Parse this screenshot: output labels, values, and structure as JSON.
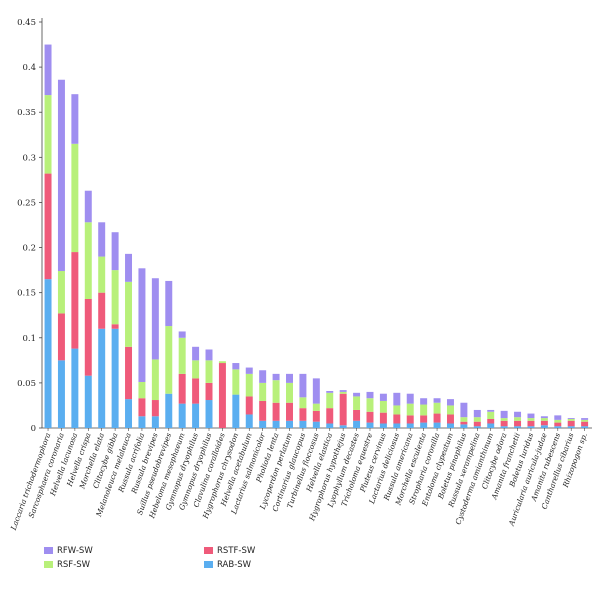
{
  "chart_data": {
    "type": "bar",
    "stacked": true,
    "title": "",
    "xlabel": "",
    "ylabel": "",
    "ylim": [
      0,
      0.45
    ],
    "yticks": [
      "0",
      "0.05",
      "0.1",
      "0.15",
      "0.2",
      "0.25",
      "0.3",
      "0.35",
      "0.4",
      "0.45"
    ],
    "grid": false,
    "legend_position": "bottom-left",
    "categories": [
      "Laccaria trichodermophora",
      "Sarcosphaera coronaria",
      "Helvella lacunosa",
      "Helvella crispa",
      "Morchella elata",
      "Clitocybe gibba",
      "Melanoleuca melaleuca",
      "Russula acrifolia",
      "Russula brevipes",
      "Suillus pseudobrevipes",
      "Hebeloma mesophaeum",
      "Gymnopus dryophilus",
      "Gymnopus dryophilus",
      "Clavulina coralloides",
      "Hygrophorus chrysodon",
      "Helvella acetabulum",
      "Lactarius salmonicolor",
      "Pholiota lenta",
      "Lycoperdon perlatum",
      "Cortinarius glaucopus",
      "Turbinellus floccosus",
      "Helvella elastica",
      "Hygrophorus hypothejus",
      "Lyophyllum decastes",
      "Tricholoma equestre",
      "Pluteus cervinus",
      "Lactarius deliciosus",
      "Russula americana",
      "Morchella esculenta",
      "Stropharia coronilla",
      "Entoloma clypeatum",
      "Boletus pinophilus",
      "Russula xerampelina",
      "Cystoderma amianthinum",
      "Clitocybe odora",
      "Amanita franchetii",
      "Boletus luridus",
      "Auricularia auricula-judae",
      "Amanita rubescens",
      "Cantharellus cibarius",
      "Rhizopogon sp."
    ],
    "series": [
      {
        "name": "RAB-SW",
        "color": "#5aaef0",
        "values": [
          0.165,
          0.075,
          0.088,
          0.058,
          0.11,
          0.11,
          0.032,
          0.013,
          0.013,
          0.038,
          0.027,
          0.027,
          0.031,
          0.0,
          0.037,
          0.015,
          0.008,
          0.008,
          0.008,
          0.008,
          0.007,
          0.005,
          0.003,
          0.008,
          0.006,
          0.005,
          0.005,
          0.005,
          0.006,
          0.006,
          0.005,
          0.004,
          0.002,
          0.005,
          0.002,
          0.002,
          0.002,
          0.003,
          0.002,
          0.002,
          0.002
        ]
      },
      {
        "name": "RSTF-SW",
        "color": "#ef5a7a",
        "values": [
          0.117,
          0.052,
          0.107,
          0.085,
          0.04,
          0.005,
          0.058,
          0.02,
          0.018,
          0.0,
          0.033,
          0.028,
          0.019,
          0.072,
          0.0,
          0.02,
          0.022,
          0.02,
          0.02,
          0.014,
          0.012,
          0.017,
          0.035,
          0.012,
          0.012,
          0.012,
          0.01,
          0.009,
          0.008,
          0.01,
          0.01,
          0.003,
          0.005,
          0.005,
          0.006,
          0.006,
          0.006,
          0.005,
          0.004,
          0.006,
          0.005
        ]
      },
      {
        "name": "RSF-SW",
        "color": "#b8f07a",
        "values": [
          0.087,
          0.047,
          0.12,
          0.085,
          0.04,
          0.06,
          0.072,
          0.018,
          0.045,
          0.075,
          0.04,
          0.02,
          0.025,
          0.002,
          0.028,
          0.025,
          0.02,
          0.025,
          0.022,
          0.012,
          0.008,
          0.017,
          0.002,
          0.015,
          0.015,
          0.013,
          0.01,
          0.013,
          0.012,
          0.012,
          0.01,
          0.005,
          0.005,
          0.008,
          0.003,
          0.004,
          0.003,
          0.003,
          0.003,
          0.002,
          0.002
        ]
      },
      {
        "name": "RFW-SW",
        "color": "#9f8ef0",
        "values": [
          0.056,
          0.212,
          0.055,
          0.035,
          0.038,
          0.042,
          0.031,
          0.126,
          0.09,
          0.05,
          0.007,
          0.015,
          0.012,
          0.0,
          0.007,
          0.007,
          0.014,
          0.007,
          0.01,
          0.026,
          0.028,
          0.002,
          0.002,
          0.004,
          0.007,
          0.008,
          0.014,
          0.011,
          0.007,
          0.005,
          0.007,
          0.016,
          0.008,
          0.002,
          0.008,
          0.006,
          0.005,
          0.002,
          0.005,
          0.001,
          0.002
        ]
      }
    ]
  }
}
